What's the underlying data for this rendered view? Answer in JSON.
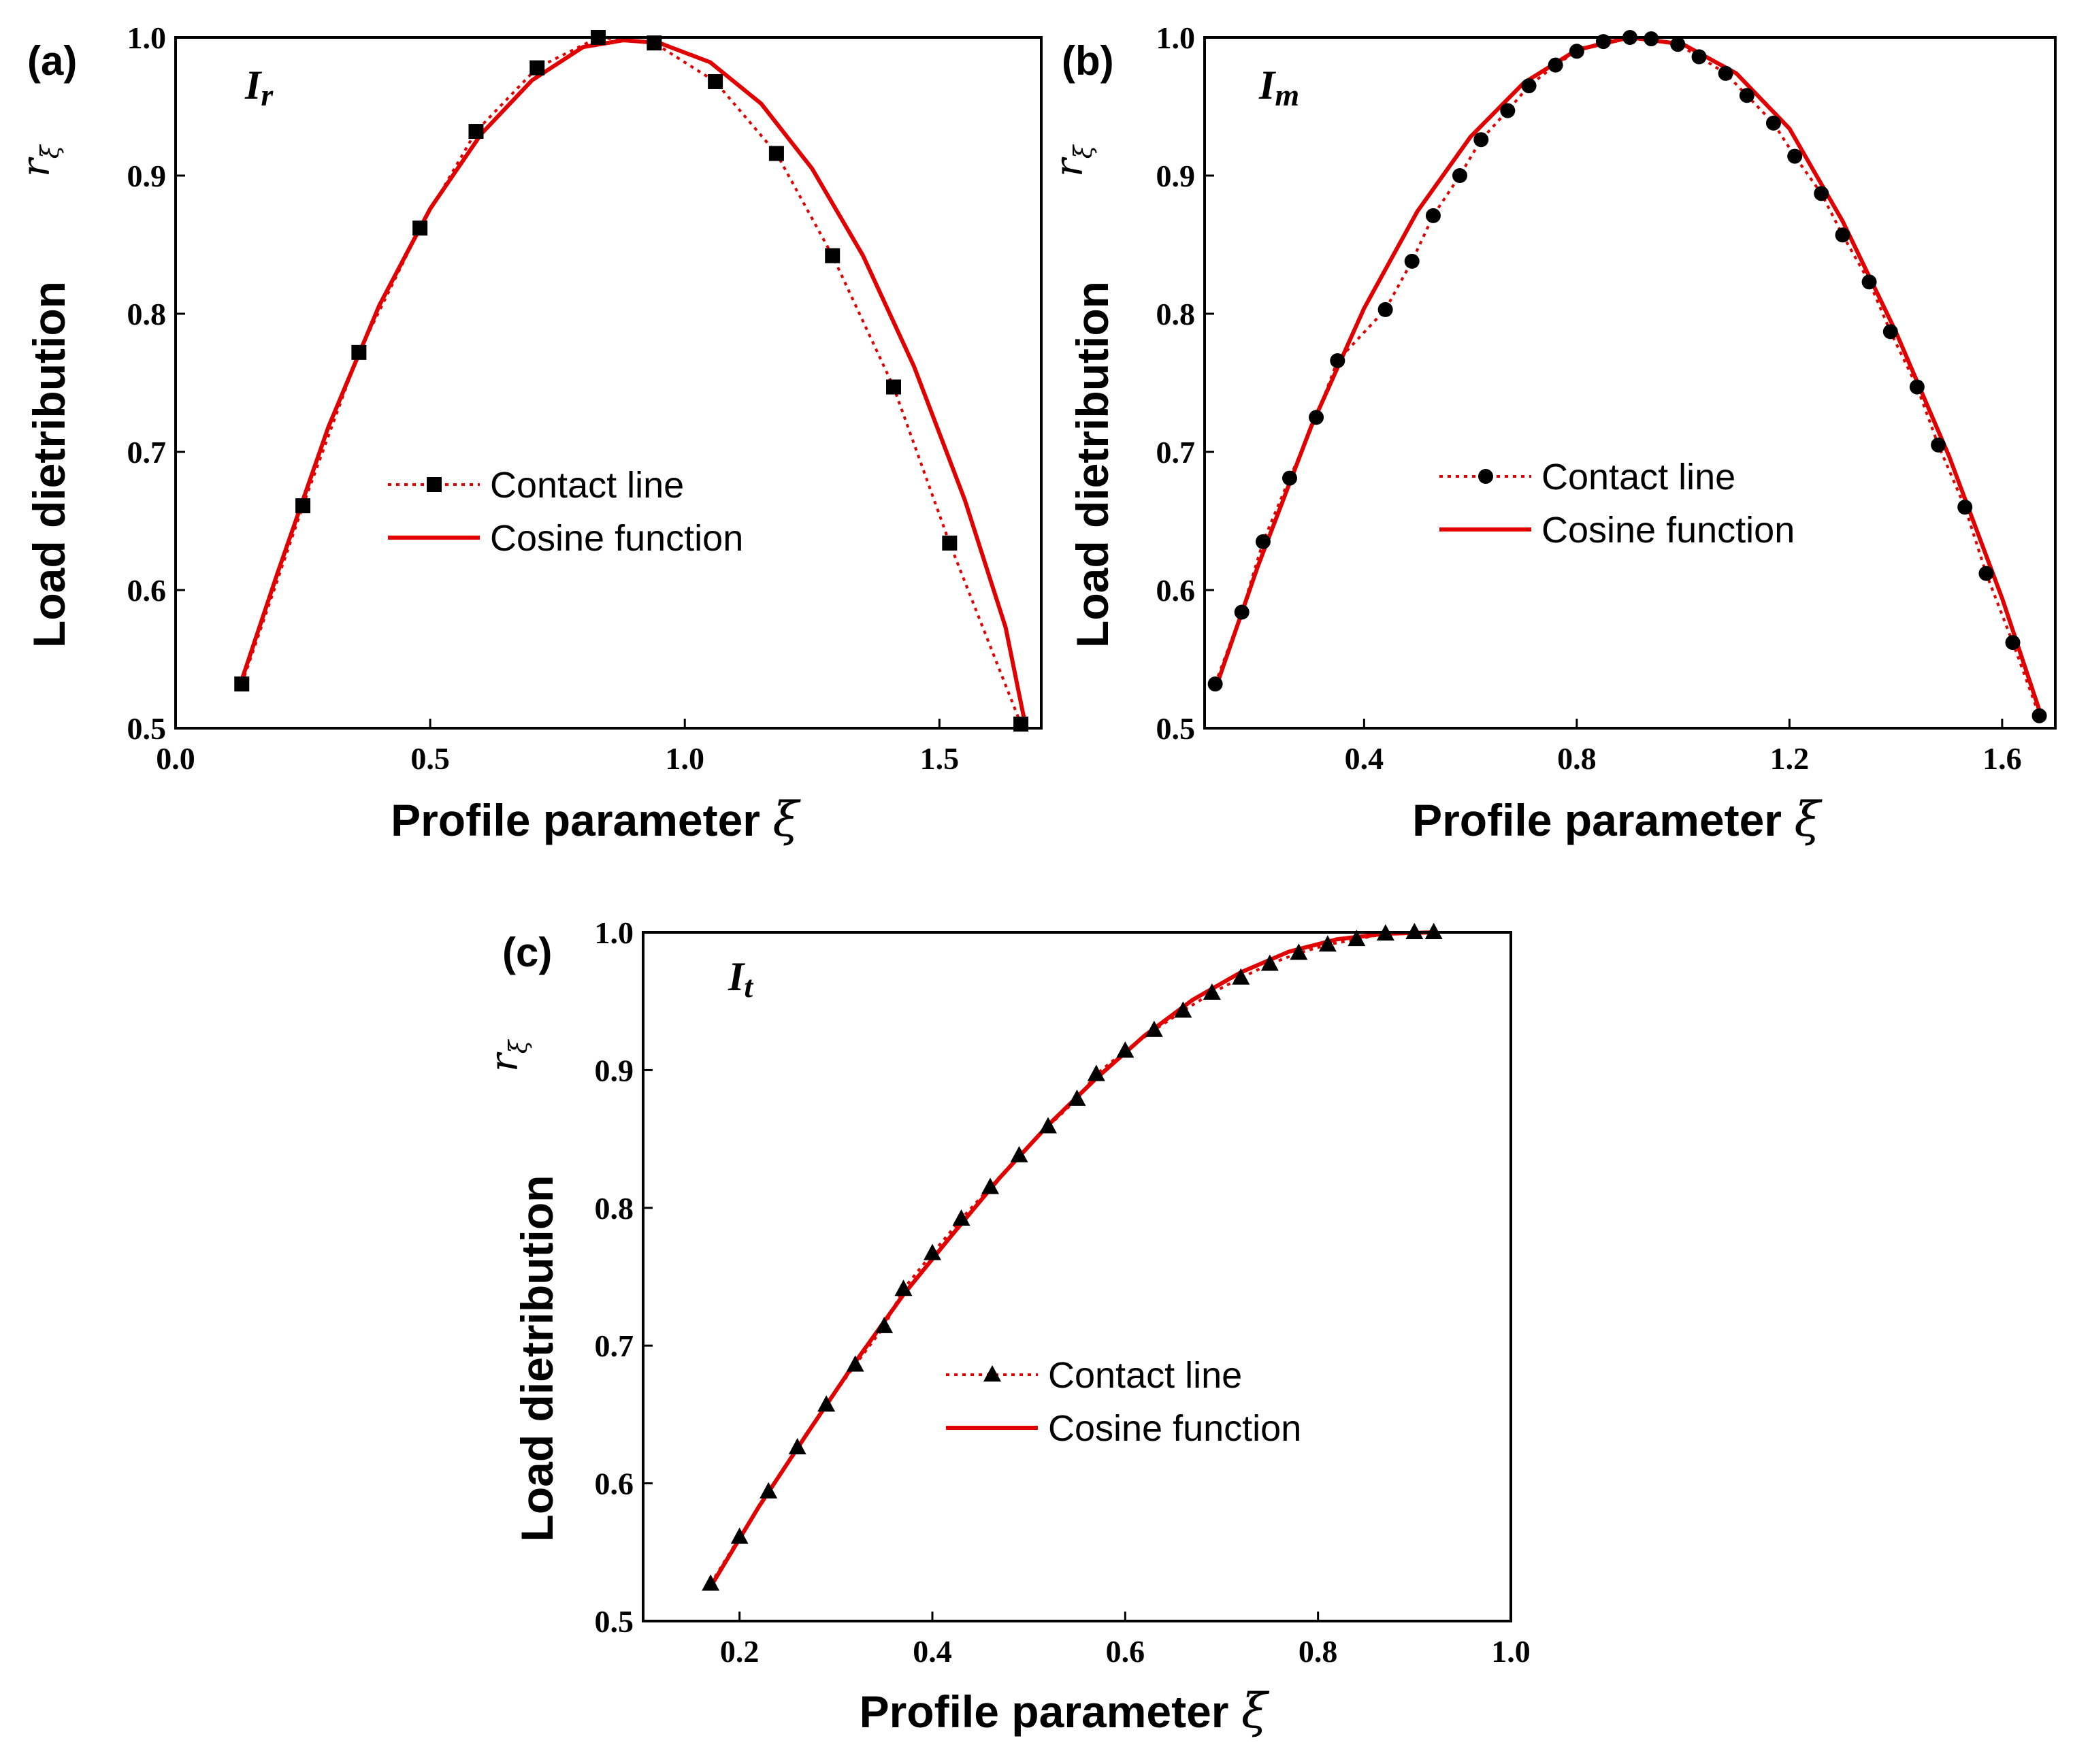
{
  "chart_data": [
    {
      "id": "a",
      "type": "line",
      "panel_label": "(a)",
      "inset_label": {
        "main": "I",
        "sub": "r"
      },
      "xlabel": "Profile parameter",
      "xlabel_symbol": "ξ",
      "ylabel": "Load dietribution",
      "ylabel_symbol": {
        "main": "r",
        "sub": "ξ"
      },
      "xlim": [
        0.0,
        1.7
      ],
      "ylim": [
        0.5,
        1.0
      ],
      "xticks": [
        0.0,
        0.5,
        1.0,
        1.5
      ],
      "xtick_labels": [
        "0.0",
        "0.5",
        "1.0",
        "1.5"
      ],
      "yticks": [
        0.5,
        0.6,
        0.7,
        0.8,
        0.9,
        1.0
      ],
      "ytick_labels": [
        "0.5",
        "0.6",
        "0.7",
        "0.8",
        "0.9",
        "1.0"
      ],
      "marker": "square",
      "legend": {
        "position": "center",
        "entries": [
          "Contact line",
          "Cosine function"
        ]
      },
      "series": [
        {
          "name": "Contact line",
          "style": "dotted-marker",
          "color": "#e00000",
          "x": [
            0.13,
            0.25,
            0.36,
            0.48,
            0.59,
            0.71,
            0.83,
            0.94,
            1.06,
            1.18,
            1.29,
            1.41,
            1.52,
            1.66
          ],
          "y": [
            0.532,
            0.661,
            0.772,
            0.862,
            0.932,
            0.978,
            1.0,
            0.996,
            0.968,
            0.916,
            0.842,
            0.747,
            0.634,
            0.503
          ]
        },
        {
          "name": "Cosine function",
          "style": "solid",
          "color": "#e00000",
          "x": [
            0.13,
            0.2,
            0.3,
            0.4,
            0.5,
            0.6,
            0.7,
            0.8,
            0.88,
            0.95,
            1.05,
            1.15,
            1.25,
            1.35,
            1.45,
            1.55,
            1.63,
            1.67
          ],
          "y": [
            0.535,
            0.612,
            0.718,
            0.806,
            0.876,
            0.93,
            0.969,
            0.993,
            0.998,
            0.996,
            0.982,
            0.952,
            0.905,
            0.842,
            0.762,
            0.665,
            0.573,
            0.5
          ]
        }
      ]
    },
    {
      "id": "b",
      "type": "line",
      "panel_label": "(b)",
      "inset_label": {
        "main": "I",
        "sub": "m"
      },
      "xlabel": "Profile parameter",
      "xlabel_symbol": "ξ",
      "ylabel": "Load dietribution",
      "ylabel_symbol": {
        "main": "r",
        "sub": "ξ"
      },
      "xlim": [
        0.1,
        1.7
      ],
      "ylim": [
        0.5,
        1.0
      ],
      "xticks": [
        0.4,
        0.8,
        1.2,
        1.6
      ],
      "xtick_labels": [
        "0.4",
        "0.8",
        "1.2",
        "1.6"
      ],
      "yticks": [
        0.5,
        0.6,
        0.7,
        0.8,
        0.9,
        1.0
      ],
      "ytick_labels": [
        "0.5",
        "0.6",
        "0.7",
        "0.8",
        "0.9",
        "1.0"
      ],
      "marker": "circle",
      "legend": {
        "position": "center-right",
        "entries": [
          "Contact line",
          "Cosine function"
        ]
      },
      "series": [
        {
          "name": "Contact line",
          "style": "dotted-marker",
          "color": "#e00000",
          "x": [
            0.12,
            0.17,
            0.21,
            0.26,
            0.31,
            0.35,
            0.44,
            0.49,
            0.53,
            0.58,
            0.62,
            0.67,
            0.71,
            0.76,
            0.8,
            0.85,
            0.9,
            0.94,
            0.99,
            1.03,
            1.08,
            1.12,
            1.17,
            1.21,
            1.26,
            1.3,
            1.35,
            1.39,
            1.44,
            1.48,
            1.53,
            1.57,
            1.62,
            1.67
          ],
          "y": [
            0.532,
            0.584,
            0.635,
            0.681,
            0.725,
            0.766,
            0.803,
            0.838,
            0.871,
            0.9,
            0.926,
            0.947,
            0.965,
            0.98,
            0.99,
            0.997,
            1.0,
            0.999,
            0.995,
            0.986,
            0.974,
            0.958,
            0.938,
            0.914,
            0.887,
            0.857,
            0.823,
            0.787,
            0.747,
            0.705,
            0.66,
            0.612,
            0.562,
            0.509
          ]
        },
        {
          "name": "Cosine function",
          "style": "solid",
          "color": "#e00000",
          "x": [
            0.12,
            0.2,
            0.3,
            0.4,
            0.5,
            0.6,
            0.7,
            0.8,
            0.9,
            1.0,
            1.1,
            1.2,
            1.3,
            1.4,
            1.5,
            1.6,
            1.67
          ],
          "y": [
            0.528,
            0.617,
            0.718,
            0.804,
            0.874,
            0.928,
            0.967,
            0.991,
            1.0,
            0.995,
            0.974,
            0.934,
            0.867,
            0.787,
            0.697,
            0.594,
            0.513
          ]
        }
      ]
    },
    {
      "id": "c",
      "type": "line",
      "panel_label": "(c)",
      "inset_label": {
        "main": "I",
        "sub": "t"
      },
      "xlabel": "Profile parameter",
      "xlabel_symbol": "ξ",
      "ylabel": "Load dietribution",
      "ylabel_symbol": {
        "main": "r",
        "sub": "ξ"
      },
      "xlim": [
        0.1,
        1.0
      ],
      "ylim": [
        0.5,
        1.0
      ],
      "xticks": [
        0.2,
        0.4,
        0.6,
        0.8,
        1.0
      ],
      "xtick_labels": [
        "0.2",
        "0.4",
        "0.6",
        "0.8",
        "1.0"
      ],
      "yticks": [
        0.5,
        0.6,
        0.7,
        0.8,
        0.9,
        1.0
      ],
      "ytick_labels": [
        "0.5",
        "0.6",
        "0.7",
        "0.8",
        "0.9",
        "1.0"
      ],
      "marker": "triangle",
      "legend": {
        "position": "center-right",
        "entries": [
          "Contact line",
          "Cosine function"
        ]
      },
      "series": [
        {
          "name": "Contact line",
          "style": "dotted-marker",
          "color": "#e00000",
          "x": [
            0.17,
            0.2,
            0.23,
            0.26,
            0.29,
            0.32,
            0.35,
            0.37,
            0.4,
            0.43,
            0.46,
            0.49,
            0.52,
            0.55,
            0.57,
            0.6,
            0.63,
            0.66,
            0.69,
            0.72,
            0.75,
            0.78,
            0.81,
            0.84,
            0.87,
            0.9,
            0.92
          ],
          "y": [
            0.527,
            0.561,
            0.594,
            0.626,
            0.657,
            0.686,
            0.714,
            0.741,
            0.767,
            0.792,
            0.815,
            0.838,
            0.859,
            0.879,
            0.897,
            0.914,
            0.929,
            0.943,
            0.956,
            0.967,
            0.977,
            0.985,
            0.991,
            0.995,
            0.999,
            1.0,
            1.0
          ]
        },
        {
          "name": "Cosine function",
          "style": "solid",
          "color": "#e00000",
          "x": [
            0.17,
            0.22,
            0.27,
            0.32,
            0.37,
            0.42,
            0.47,
            0.52,
            0.57,
            0.62,
            0.67,
            0.72,
            0.77,
            0.82,
            0.87,
            0.92
          ],
          "y": [
            0.525,
            0.583,
            0.636,
            0.688,
            0.737,
            0.78,
            0.822,
            0.86,
            0.894,
            0.925,
            0.951,
            0.971,
            0.986,
            0.995,
            0.999,
            1.0
          ]
        }
      ]
    }
  ]
}
